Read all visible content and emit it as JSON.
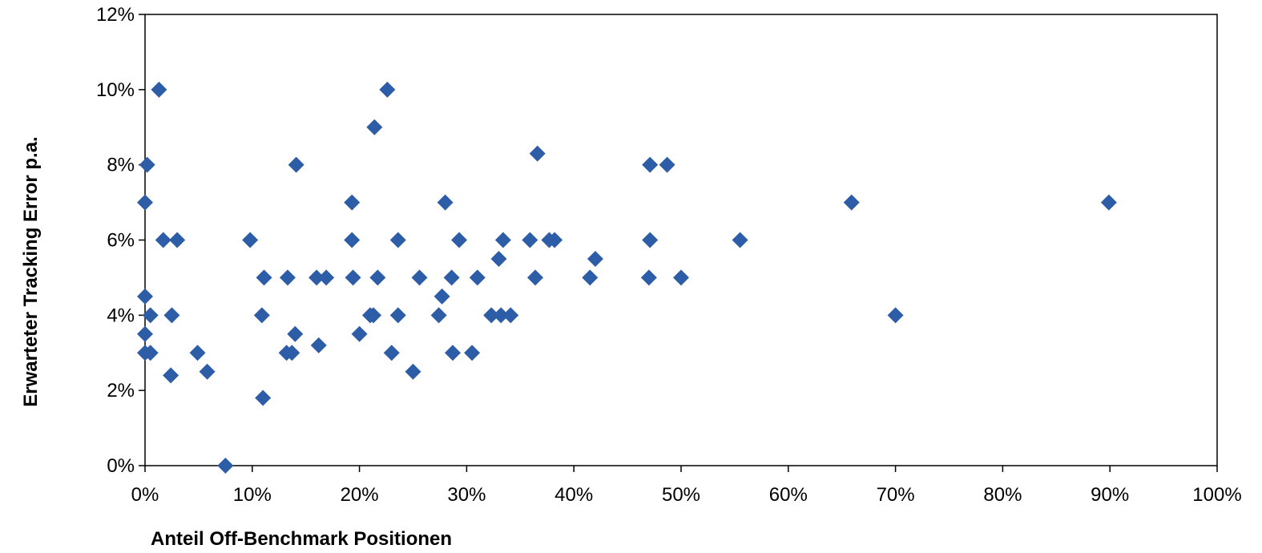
{
  "chart_data": {
    "type": "scatter",
    "title": "",
    "xlabel": "Anteil Off-Benchmark Positionen",
    "ylabel": "Erwarteter Tracking Error p.a.",
    "xlim": [
      0,
      100
    ],
    "ylim": [
      0,
      12
    ],
    "x_ticks": [
      "0%",
      "10%",
      "20%",
      "30%",
      "40%",
      "50%",
      "60%",
      "70%",
      "80%",
      "90%",
      "100%"
    ],
    "y_ticks": [
      "0%",
      "2%",
      "4%",
      "6%",
      "8%",
      "10%",
      "12%"
    ],
    "grid": false,
    "legend": "none",
    "marker": "diamond",
    "marker_color": "#2E5DA8",
    "series": [
      {
        "points": [
          [
            0,
            3
          ],
          [
            0,
            3.5
          ],
          [
            0,
            4.5
          ],
          [
            0,
            7
          ],
          [
            0.2,
            8
          ],
          [
            0.5,
            4
          ],
          [
            0.5,
            3
          ],
          [
            1.3,
            10
          ],
          [
            1.7,
            6
          ],
          [
            2.5,
            4
          ],
          [
            2.4,
            2.4
          ],
          [
            3,
            6
          ],
          [
            4.9,
            3
          ],
          [
            5.8,
            2.5
          ],
          [
            7.5,
            0
          ],
          [
            9.8,
            6
          ],
          [
            11,
            1.8
          ],
          [
            10.9,
            4
          ],
          [
            11.1,
            5
          ],
          [
            13.2,
            3
          ],
          [
            13.7,
            3
          ],
          [
            13.3,
            5
          ],
          [
            14,
            3.5
          ],
          [
            14.1,
            8
          ],
          [
            16,
            5
          ],
          [
            16.2,
            3.2
          ],
          [
            16.9,
            5
          ],
          [
            19.3,
            7
          ],
          [
            19.3,
            6
          ],
          [
            19.4,
            5
          ],
          [
            20,
            3.5
          ],
          [
            21,
            4
          ],
          [
            21.3,
            4
          ],
          [
            21.4,
            9
          ],
          [
            21.7,
            5
          ],
          [
            22.6,
            10
          ],
          [
            23,
            3
          ],
          [
            23.6,
            4
          ],
          [
            23.6,
            6
          ],
          [
            25,
            2.5
          ],
          [
            25.6,
            5
          ],
          [
            27.4,
            4
          ],
          [
            27.7,
            4.5
          ],
          [
            28,
            7
          ],
          [
            28.6,
            5
          ],
          [
            28.7,
            3
          ],
          [
            29.3,
            6
          ],
          [
            30.5,
            3
          ],
          [
            31,
            5
          ],
          [
            32.3,
            4
          ],
          [
            33,
            5.5
          ],
          [
            33.2,
            4
          ],
          [
            33.4,
            6
          ],
          [
            34.1,
            4
          ],
          [
            35.9,
            6
          ],
          [
            36.4,
            5
          ],
          [
            36.6,
            8.3
          ],
          [
            37.7,
            6
          ],
          [
            38.2,
            6
          ],
          [
            41.5,
            5
          ],
          [
            42,
            5.5
          ],
          [
            47,
            5
          ],
          [
            47.1,
            8
          ],
          [
            47.1,
            6
          ],
          [
            48.7,
            8
          ],
          [
            50,
            5
          ],
          [
            55.5,
            6
          ],
          [
            65.9,
            7
          ],
          [
            70,
            4
          ],
          [
            89.9,
            7
          ]
        ]
      }
    ]
  }
}
